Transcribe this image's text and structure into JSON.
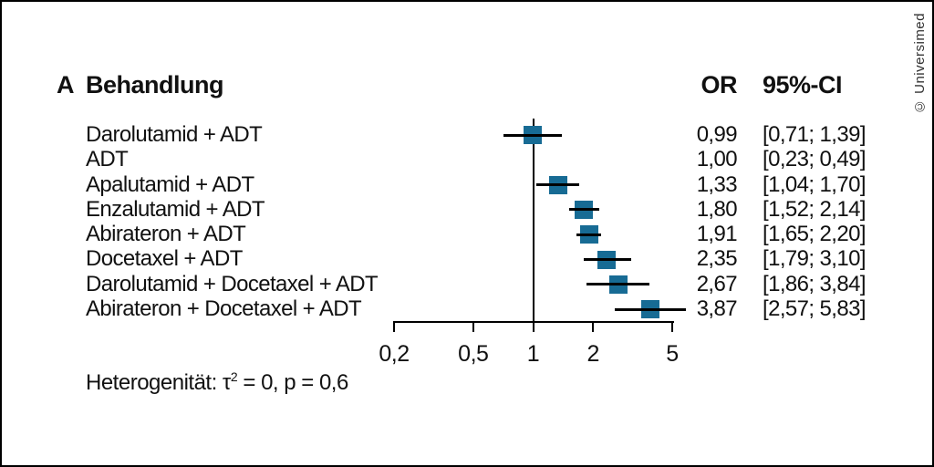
{
  "panel": {
    "label": "A",
    "column_treatment": "Behandlung",
    "column_or": "OR",
    "column_ci": "95%-CI"
  },
  "watermark": "© Universimed",
  "footer": {
    "prefix": "Heterogenität: τ",
    "sup": "2",
    "suffix": " = 0, p = 0,6"
  },
  "rows": [
    {
      "label": "Darolutamid + ADT",
      "or_text": "0,99",
      "ci_text": "[0,71; 1,39]"
    },
    {
      "label": "ADT",
      "or_text": "1,00",
      "ci_text": "[0,23; 0,49]"
    },
    {
      "label": "Apalutamid + ADT",
      "or_text": "1,33",
      "ci_text": "[1,04; 1,70]"
    },
    {
      "label": "Enzalutamid + ADT",
      "or_text": "1,80",
      "ci_text": "[1,52; 2,14]"
    },
    {
      "label": "Abirateron + ADT",
      "or_text": "1,91",
      "ci_text": "[1,65; 2,20]"
    },
    {
      "label": "Docetaxel + ADT",
      "or_text": "2,35",
      "ci_text": "[1,79; 3,10]"
    },
    {
      "label": "Darolutamid + Docetaxel + ADT",
      "or_text": "2,67",
      "ci_text": "[1,86; 3,84]"
    },
    {
      "label": "Abirateron + Docetaxel + ADT",
      "or_text": "3,87",
      "ci_text": "[2,57; 5,83]"
    }
  ],
  "chart_data": {
    "type": "scatter",
    "subtype": "forest-plot",
    "title": "A Behandlung",
    "x_scale": "log10",
    "x_range": [
      0.2,
      5
    ],
    "reference_line_x": 1,
    "marker_color": "#176b94",
    "line_color": "#000000",
    "x_ticks": [
      {
        "value": 0.2,
        "label": "0,2"
      },
      {
        "value": 0.5,
        "label": "0,5"
      },
      {
        "value": 1,
        "label": "1"
      },
      {
        "value": 2,
        "label": "2"
      },
      {
        "value": 5,
        "label": "5"
      }
    ],
    "points": [
      {
        "category": "Darolutamid + ADT",
        "or": 0.99,
        "ci_low": 0.71,
        "ci_high": 1.39,
        "marker": true
      },
      {
        "category": "ADT",
        "or": 1.0,
        "ci_low": 0.23,
        "ci_high": 0.49,
        "marker": false
      },
      {
        "category": "Apalutamid + ADT",
        "or": 1.33,
        "ci_low": 1.04,
        "ci_high": 1.7,
        "marker": true
      },
      {
        "category": "Enzalutamid + ADT",
        "or": 1.8,
        "ci_low": 1.52,
        "ci_high": 2.14,
        "marker": true
      },
      {
        "category": "Abirateron + ADT",
        "or": 1.91,
        "ci_low": 1.65,
        "ci_high": 2.2,
        "marker": true
      },
      {
        "category": "Docetaxel + ADT",
        "or": 2.35,
        "ci_low": 1.79,
        "ci_high": 3.1,
        "marker": true
      },
      {
        "category": "Darolutamid + Docetaxel + ADT",
        "or": 2.67,
        "ci_low": 1.86,
        "ci_high": 3.84,
        "marker": true
      },
      {
        "category": "Abirateron + Docetaxel + ADT",
        "or": 3.87,
        "ci_low": 2.57,
        "ci_high": 5.83,
        "marker": true
      }
    ],
    "heterogeneity_note": "Heterogenität: τ² = 0, p = 0,6"
  }
}
